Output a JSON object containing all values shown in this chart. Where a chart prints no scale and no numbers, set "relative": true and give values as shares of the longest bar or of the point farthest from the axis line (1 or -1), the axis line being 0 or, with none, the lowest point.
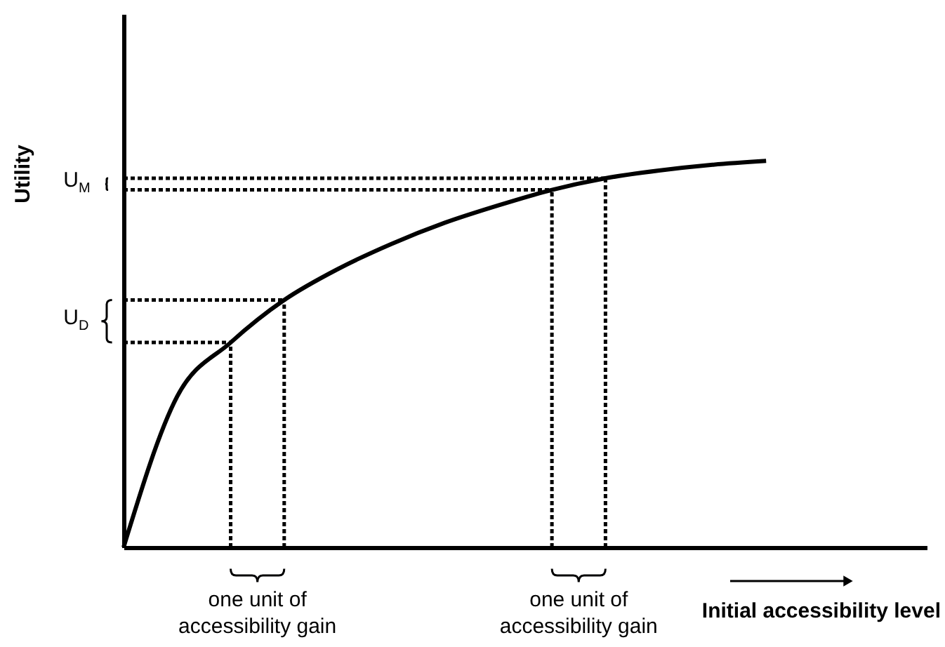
{
  "chart_data": {
    "type": "line",
    "relative": true,
    "xlabel": "Initial accessibility level",
    "ylabel": "Utility",
    "categories": [
      null,
      null,
      null,
      null,
      null,
      null,
      null,
      null,
      null,
      null,
      null,
      null,
      null,
      null,
      null,
      null
    ],
    "series": [
      {
        "color": "#000000",
        "values": [
          0,
          0.39,
          0.53,
          0.64,
          0.72,
          0.785,
          0.84,
          0.885,
          0.925,
          0.955,
          0.975,
          0.99,
          1,
          null,
          null,
          null
        ]
      }
    ],
    "annotations": [
      "U$_{D}$",
      "U$_{M}$",
      "one unit of accessibility gain",
      "one unit of accessibility gain"
    ],
    "ref_lines": [
      {
        "axis": "y",
        "value": 0.53,
        "color": "#000000",
        "line_style": "dotted"
      },
      {
        "axis": "y",
        "value": 0.64,
        "color": "#000000",
        "line_style": "dotted"
      },
      {
        "axis": "y",
        "value": 0.925,
        "color": "#000000",
        "line_style": "dotted"
      },
      {
        "axis": "y",
        "value": 0.955,
        "color": "#000000",
        "line_style": "dotted"
      }
    ],
    "grid": false,
    "legend": false,
    "marker": "none",
    "line_style": "solid",
    "tick_labels": false
  }
}
